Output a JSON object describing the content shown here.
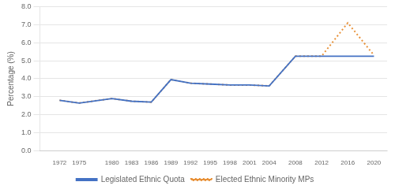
{
  "chart_data": {
    "type": "line",
    "x": [
      1972,
      1975,
      1980,
      1983,
      1986,
      1989,
      1992,
      1995,
      1998,
      2001,
      2004,
      2008,
      2012,
      2016,
      2020
    ],
    "series": [
      {
        "name": "Legislated Ethnic Quota",
        "color": "#4472C4",
        "line_style": "solid",
        "values": [
          2.8,
          2.65,
          2.9,
          2.75,
          2.7,
          3.95,
          3.75,
          3.7,
          3.65,
          3.65,
          3.6,
          5.25,
          5.25,
          5.25,
          5.25
        ]
      },
      {
        "name": "Elected Ethnic Minority MPs",
        "color": "#E8923A",
        "line_style": "dotted",
        "values": [
          2.8,
          2.65,
          2.9,
          2.75,
          2.7,
          3.95,
          3.75,
          3.7,
          3.65,
          3.65,
          3.6,
          5.25,
          5.25,
          7.1,
          5.3
        ]
      }
    ],
    "ylabel": "Percentage (%)",
    "xlim": [
      1969,
      2022
    ],
    "xticks": [
      1972,
      1975,
      1980,
      1983,
      1986,
      1989,
      1992,
      1995,
      1998,
      2001,
      2004,
      2008,
      2012,
      2016,
      2020
    ],
    "ylim": [
      0.0,
      8.0
    ],
    "yticks": [
      {
        "value": 0,
        "label": "0.0"
      },
      {
        "value": 1,
        "label": "1.0"
      },
      {
        "value": 2,
        "label": "2.0"
      },
      {
        "value": 3,
        "label": "3.0"
      },
      {
        "value": 4,
        "label": "4.0"
      },
      {
        "value": 5,
        "label": "5.0"
      },
      {
        "value": 6,
        "label": "6.0"
      },
      {
        "value": 7,
        "label": "7.0"
      },
      {
        "value": 8,
        "label": "8.0"
      }
    ],
    "grid": true,
    "legend": "bottom"
  }
}
